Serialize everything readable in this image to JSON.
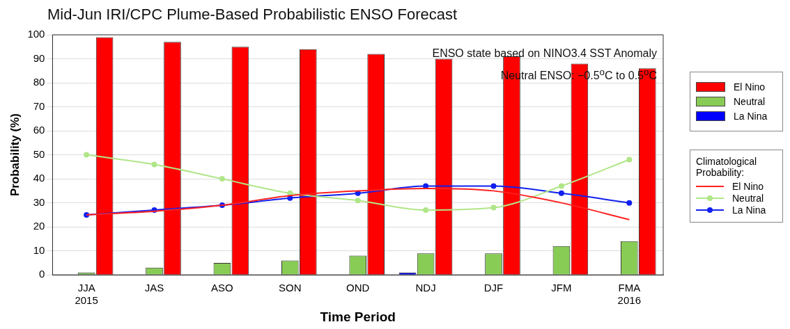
{
  "chart_data": {
    "type": "bar",
    "title": "Mid-Jun IRI/CPC Plume-Based Probabilistic ENSO Forecast",
    "xlabel": "Time Period",
    "ylabel": "Probability (%)",
    "legend_title": "Climatological Probability:",
    "categories": [
      "JJA\n2015",
      "JAS",
      "ASO",
      "SON",
      "OND",
      "NDJ",
      "DJF",
      "JFM",
      "FMA\n2016"
    ],
    "series": [
      {
        "name": "El Nino",
        "color": "#ff0000",
        "values": [
          99,
          97,
          95,
          94,
          92,
          90,
          91,
          88,
          86
        ]
      },
      {
        "name": "Neutral",
        "color": "#88cc55",
        "values": [
          1,
          3,
          5,
          6,
          8,
          9,
          9,
          12,
          14
        ]
      },
      {
        "name": "La Nina",
        "color": "#0000ff",
        "values": [
          0,
          0,
          0,
          0,
          0,
          1,
          0,
          0,
          0
        ]
      },
      {
        "name": "El Nino",
        "type": "line",
        "marker": "none",
        "color": "#ff2020",
        "values": [
          25,
          26.5,
          29,
          33,
          35,
          36,
          35,
          30,
          23
        ]
      },
      {
        "name": "Neutral",
        "type": "line",
        "marker": "circle",
        "color": "#b0e688",
        "values": [
          50,
          46,
          40,
          34,
          31,
          27,
          28,
          37,
          48
        ]
      },
      {
        "name": "La Nina",
        "type": "line",
        "marker": "circle",
        "color": "#1020f0",
        "values": [
          25,
          27,
          29,
          32,
          34,
          37,
          37,
          34,
          30
        ]
      }
    ],
    "ylim": [
      0,
      100
    ],
    "yticks": [
      0,
      10,
      20,
      30,
      40,
      50,
      60,
      70,
      80,
      90,
      100
    ],
    "grid": "y",
    "legend": "right",
    "annotations": [
      "ENSO state based on NINO3.4 SST Anomaly",
      "Neutral ENSO: −0.5$^{o}$C to 0.5$^{o}$C"
    ]
  }
}
